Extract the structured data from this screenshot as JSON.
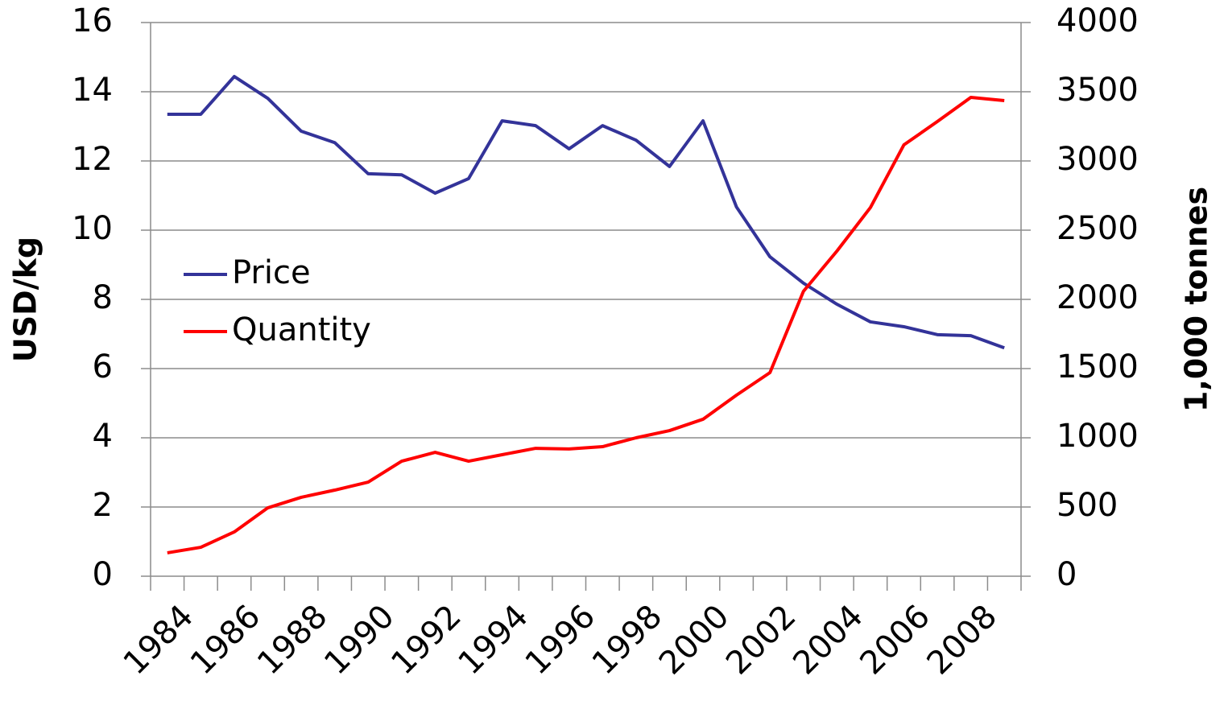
{
  "chart_data": {
    "type": "line",
    "categories": [
      1984,
      null,
      1986,
      null,
      1988,
      null,
      1990,
      null,
      1992,
      null,
      1994,
      null,
      1996,
      null,
      1998,
      null,
      2000,
      null,
      2002,
      null,
      2004,
      null,
      2006,
      null,
      2008,
      null
    ],
    "series": [
      {
        "name": "Price",
        "color": "#333399",
        "values": [
          13.35,
          13.35,
          14.44,
          13.81,
          12.86,
          12.53,
          11.63,
          11.6,
          11.07,
          11.49,
          13.16,
          13.02,
          12.35,
          13.02,
          12.6,
          11.84,
          13.16,
          10.67,
          9.23,
          8.47,
          7.86,
          7.35,
          7.21,
          6.98,
          6.95,
          6.6
        ]
      },
      {
        "name": "Quantity",
        "color": "#ff0000",
        "axis": "y2",
        "values": [
          169,
          209,
          320,
          494,
          570,
          622,
          680,
          831,
          895,
          831,
          878,
          924,
          919,
          936,
          1000,
          1052,
          1134,
          1308,
          1471,
          2058,
          2349,
          2663,
          3116,
          3285,
          3459,
          3436
        ]
      }
    ],
    "ylabel": "USD/kg",
    "y2label": "1,000 tonnes",
    "ylim": [
      0,
      16
    ],
    "yticks": [
      0,
      2,
      4,
      6,
      8,
      10,
      12,
      14,
      16
    ],
    "y2lim": [
      0,
      4000
    ],
    "y2ticks": [
      0,
      500,
      1000,
      1500,
      2000,
      2500,
      3000,
      3500,
      4000
    ],
    "grid": true
  }
}
